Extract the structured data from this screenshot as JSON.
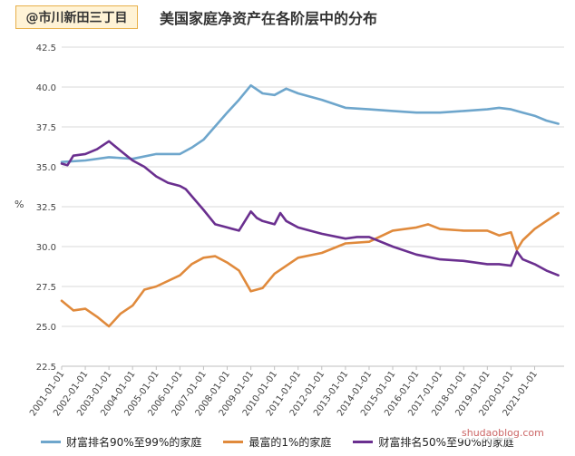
{
  "header": {
    "watermark": "@市川新田三丁目",
    "title": "美国家庭净资产在各阶层中的分布"
  },
  "corner_watermark": "shudaoblog.com",
  "colors": {
    "series_90_99": "#6ea6cc",
    "series_top1": "#e08a3c",
    "series_50_90": "#6a2f8f",
    "grid": "#d9d9d9"
  },
  "chart_data": {
    "type": "line",
    "ylabel": "%",
    "ylim": [
      22.5,
      42.5
    ],
    "yticks": [
      "22.5",
      "25.0",
      "27.5",
      "30.0",
      "32.5",
      "35.0",
      "37.5",
      "40.0",
      "42.5"
    ],
    "xlim": [
      "2001-01-01",
      "2022-04-01"
    ],
    "xticks": [
      "2001-01-01",
      "2002-01-01",
      "2003-01-01",
      "2004-01-01",
      "2005-01-01",
      "2006-01-01",
      "2007-01-01",
      "2008-01-01",
      "2009-01-01",
      "2010-01-01",
      "2011-01-01",
      "2012-01-01",
      "2013-01-01",
      "2014-01-01",
      "2015-01-01",
      "2016-01-01",
      "2017-01-01",
      "2018-01-01",
      "2019-01-01",
      "2020-01-01",
      "2021-01-01"
    ],
    "grid": "horizontal",
    "legend_position": "bottom",
    "series": [
      {
        "name": "财富排名90%至99%的家庭",
        "color_key": "series_90_99",
        "x": [
          "2001-01-01",
          "2002-01-01",
          "2003-01-01",
          "2004-01-01",
          "2005-01-01",
          "2006-01-01",
          "2006-07-01",
          "2007-01-01",
          "2008-01-01",
          "2008-07-01",
          "2009-01-01",
          "2009-07-01",
          "2010-01-01",
          "2010-07-01",
          "2011-01-01",
          "2012-01-01",
          "2013-01-01",
          "2014-01-01",
          "2015-01-01",
          "2016-01-01",
          "2017-01-01",
          "2018-01-01",
          "2019-01-01",
          "2019-07-01",
          "2020-01-01",
          "2020-07-01",
          "2021-01-01",
          "2021-07-01",
          "2022-01-01"
        ],
        "values": [
          35.3,
          35.4,
          35.6,
          35.5,
          35.8,
          35.8,
          36.2,
          36.7,
          38.4,
          39.2,
          40.1,
          39.6,
          39.5,
          39.9,
          39.6,
          39.2,
          38.7,
          38.6,
          38.5,
          38.4,
          38.4,
          38.5,
          38.6,
          38.7,
          38.6,
          38.4,
          38.2,
          37.9,
          37.7
        ]
      },
      {
        "name": "最富的1%的家庭",
        "color_key": "series_top1",
        "x": [
          "2001-01-01",
          "2001-07-01",
          "2002-01-01",
          "2002-07-01",
          "2003-01-01",
          "2003-07-01",
          "2004-01-01",
          "2004-07-01",
          "2005-01-01",
          "2006-01-01",
          "2006-07-01",
          "2007-01-01",
          "2007-07-01",
          "2008-01-01",
          "2008-07-01",
          "2009-01-01",
          "2009-07-01",
          "2010-01-01",
          "2011-01-01",
          "2012-01-01",
          "2013-01-01",
          "2014-01-01",
          "2015-01-01",
          "2016-01-01",
          "2016-07-01",
          "2017-01-01",
          "2018-01-01",
          "2019-01-01",
          "2019-07-01",
          "2020-01-01",
          "2020-04-01",
          "2020-07-01",
          "2021-01-01",
          "2021-07-01",
          "2022-01-01"
        ],
        "values": [
          26.6,
          26.0,
          26.1,
          25.6,
          25.0,
          25.8,
          26.3,
          27.3,
          27.5,
          28.2,
          28.9,
          29.3,
          29.4,
          29.0,
          28.5,
          27.2,
          27.4,
          28.3,
          29.3,
          29.6,
          30.2,
          30.3,
          31.0,
          31.2,
          31.4,
          31.1,
          31.0,
          31.0,
          30.7,
          30.9,
          29.8,
          30.4,
          31.1,
          31.6,
          32.1
        ]
      },
      {
        "name": "财富排名50%至90%的家庭",
        "color_key": "series_50_90",
        "x": [
          "2001-01-01",
          "2001-04-01",
          "2001-07-01",
          "2002-01-01",
          "2002-07-01",
          "2003-01-01",
          "2003-07-01",
          "2004-01-01",
          "2004-07-01",
          "2005-01-01",
          "2005-07-01",
          "2006-01-01",
          "2006-04-01",
          "2007-01-01",
          "2007-07-01",
          "2008-01-01",
          "2008-07-01",
          "2009-01-01",
          "2009-04-01",
          "2009-07-01",
          "2010-01-01",
          "2010-04-01",
          "2010-07-01",
          "2011-01-01",
          "2011-07-01",
          "2012-01-01",
          "2013-01-01",
          "2013-07-01",
          "2014-01-01",
          "2015-01-01",
          "2016-01-01",
          "2017-01-01",
          "2018-01-01",
          "2019-01-01",
          "2019-07-01",
          "2020-01-01",
          "2020-04-01",
          "2020-07-01",
          "2021-01-01",
          "2021-07-01",
          "2022-01-01"
        ],
        "values": [
          35.2,
          35.1,
          35.7,
          35.8,
          36.1,
          36.6,
          36.0,
          35.4,
          35.0,
          34.4,
          34.0,
          33.8,
          33.6,
          32.3,
          31.4,
          31.2,
          31.0,
          32.2,
          31.8,
          31.6,
          31.4,
          32.1,
          31.6,
          31.2,
          31.0,
          30.8,
          30.5,
          30.6,
          30.6,
          30.0,
          29.5,
          29.2,
          29.1,
          28.9,
          28.9,
          28.8,
          29.7,
          29.2,
          28.9,
          28.5,
          28.2
        ]
      }
    ]
  }
}
